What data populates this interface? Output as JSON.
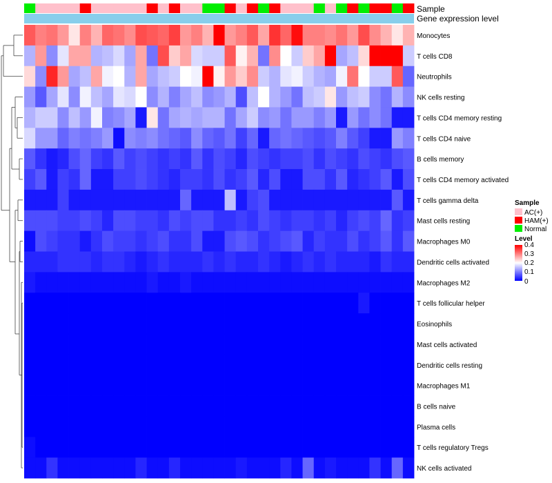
{
  "chart_data": {
    "type": "heatmap",
    "annotation_titles": {
      "sample": "Sample",
      "level": "Gene expression level"
    },
    "rows": [
      "Monocytes",
      "T cells CD8",
      "Neutrophils",
      "NK cells resting",
      "T cells CD4 memory resting",
      "T cells CD4 naive",
      "B cells memory",
      "T cells CD4 memory activated",
      "T cells gamma delta",
      "Mast cells resting",
      "Macrophages M0",
      "Dendritic cells activated",
      "Macrophages M2",
      "T cells follicular helper",
      "Eosinophils",
      "Mast cells activated",
      "Dendritic cells resting",
      "Macrophages M1",
      "B cells naive",
      "Plasma cells",
      "T cells regulatory  Tregs",
      "NK cells activated"
    ],
    "sample_groups": [
      "N",
      "A",
      "A",
      "A",
      "A",
      "H",
      "A",
      "A",
      "A",
      "A",
      "A",
      "H",
      "A",
      "H",
      "A",
      "A",
      "N",
      "N",
      "H",
      "A",
      "H",
      "N",
      "H",
      "A",
      "A",
      "A",
      "N",
      "A",
      "N",
      "H",
      "N",
      "H",
      "H",
      "N",
      "H"
    ],
    "legend": {
      "sample_title": "Sample",
      "sample_entries": [
        {
          "key": "A",
          "label": "AC(+)",
          "color": "#ffc0cb"
        },
        {
          "key": "H",
          "label": "HAM(+)",
          "color": "#ff0000"
        },
        {
          "key": "N",
          "label": "Normal",
          "color": "#00ee00"
        }
      ],
      "level_title": "Level",
      "level_ticks": [
        "0.4",
        "0.3",
        "0.2",
        "0.1",
        "0"
      ],
      "level_range": [
        0,
        0.4
      ]
    },
    "colors": {
      "low": "#0000ff",
      "mid": "#ffffff",
      "high": "#ff0000",
      "expression_bar": "#87ceeb"
    },
    "values": [
      [
        0.33,
        0.3,
        0.31,
        0.28,
        0.22,
        0.3,
        0.26,
        0.32,
        0.31,
        0.29,
        0.34,
        0.33,
        0.32,
        0.35,
        0.28,
        0.3,
        0.26,
        0.4,
        0.28,
        0.3,
        0.33,
        0.27,
        0.36,
        0.32,
        0.39,
        0.3,
        0.3,
        0.29,
        0.31,
        0.28,
        0.34,
        0.29,
        0.26,
        0.22,
        0.26
      ],
      [
        0.14,
        0.28,
        0.11,
        0.18,
        0.27,
        0.27,
        0.14,
        0.15,
        0.17,
        0.13,
        0.27,
        0.09,
        0.34,
        0.24,
        0.27,
        0.17,
        0.16,
        0.16,
        0.33,
        0.21,
        0.26,
        0.09,
        0.29,
        0.2,
        0.16,
        0.24,
        0.27,
        0.4,
        0.13,
        0.15,
        0.23,
        0.4,
        0.4,
        0.4,
        0.16
      ],
      [
        0.23,
        0.11,
        0.37,
        0.28,
        0.13,
        0.15,
        0.27,
        0.19,
        0.2,
        0.14,
        0.27,
        0.13,
        0.15,
        0.16,
        0.2,
        0.19,
        0.4,
        0.21,
        0.28,
        0.24,
        0.29,
        0.16,
        0.14,
        0.18,
        0.19,
        0.16,
        0.14,
        0.13,
        0.19,
        0.31,
        0.2,
        0.16,
        0.16,
        0.33,
        0.08
      ],
      [
        0.12,
        0.07,
        0.13,
        0.18,
        0.11,
        0.19,
        0.15,
        0.13,
        0.18,
        0.17,
        0.2,
        0.11,
        0.14,
        0.1,
        0.13,
        0.15,
        0.11,
        0.12,
        0.14,
        0.06,
        0.15,
        0.2,
        0.14,
        0.12,
        0.09,
        0.15,
        0.16,
        0.22,
        0.12,
        0.15,
        0.16,
        0.11,
        0.09,
        0.14,
        0.11
      ],
      [
        0.14,
        0.16,
        0.16,
        0.11,
        0.15,
        0.12,
        0.19,
        0.1,
        0.11,
        0.13,
        0.02,
        0.22,
        0.09,
        0.13,
        0.14,
        0.13,
        0.14,
        0.14,
        0.09,
        0.13,
        0.16,
        0.11,
        0.12,
        0.09,
        0.12,
        0.12,
        0.1,
        0.12,
        0.02,
        0.12,
        0.09,
        0.11,
        0.09,
        0.02,
        0.02
      ],
      [
        0.17,
        0.12,
        0.12,
        0.08,
        0.1,
        0.09,
        0.1,
        0.12,
        0.01,
        0.11,
        0.1,
        0.11,
        0.09,
        0.08,
        0.07,
        0.11,
        0.08,
        0.07,
        0.09,
        0.05,
        0.08,
        0.02,
        0.08,
        0.09,
        0.08,
        0.07,
        0.06,
        0.07,
        0.1,
        0.07,
        0.05,
        0.02,
        0.02,
        0.12,
        0.1
      ],
      [
        0.07,
        0.04,
        0.02,
        0.03,
        0.06,
        0.08,
        0.05,
        0.04,
        0.07,
        0.05,
        0.06,
        0.05,
        0.04,
        0.05,
        0.04,
        0.07,
        0.04,
        0.06,
        0.05,
        0.03,
        0.06,
        0.05,
        0.04,
        0.05,
        0.05,
        0.06,
        0.04,
        0.06,
        0.05,
        0.04,
        0.06,
        0.05,
        0.04,
        0.06,
        0.07
      ],
      [
        0.05,
        0.07,
        0.02,
        0.05,
        0.04,
        0.08,
        0.02,
        0.02,
        0.05,
        0.05,
        0.06,
        0.05,
        0.04,
        0.03,
        0.05,
        0.05,
        0.04,
        0.06,
        0.04,
        0.05,
        0.07,
        0.03,
        0.06,
        0.02,
        0.02,
        0.06,
        0.06,
        0.04,
        0.07,
        0.03,
        0.04,
        0.05,
        0.07,
        0.02,
        0.06
      ],
      [
        0.02,
        0.02,
        0.02,
        0.05,
        0.02,
        0.02,
        0.02,
        0.02,
        0.02,
        0.02,
        0.02,
        0.02,
        0.02,
        0.02,
        0.08,
        0.02,
        0.02,
        0.02,
        0.15,
        0.02,
        0.05,
        0.06,
        0.02,
        0.02,
        0.02,
        0.02,
        0.02,
        0.02,
        0.02,
        0.02,
        0.02,
        0.02,
        0.02,
        0.07,
        0.02
      ],
      [
        0.06,
        0.06,
        0.06,
        0.05,
        0.05,
        0.06,
        0.05,
        0.03,
        0.06,
        0.06,
        0.05,
        0.05,
        0.04,
        0.06,
        0.05,
        0.06,
        0.06,
        0.04,
        0.04,
        0.05,
        0.04,
        0.06,
        0.05,
        0.04,
        0.05,
        0.05,
        0.04,
        0.05,
        0.03,
        0.05,
        0.06,
        0.05,
        0.08,
        0.04,
        0.05
      ],
      [
        0.01,
        0.06,
        0.05,
        0.04,
        0.04,
        0.02,
        0.04,
        0.06,
        0.05,
        0.05,
        0.04,
        0.05,
        0.06,
        0.04,
        0.04,
        0.06,
        0.02,
        0.02,
        0.06,
        0.07,
        0.06,
        0.04,
        0.05,
        0.06,
        0.07,
        0.03,
        0.05,
        0.04,
        0.04,
        0.06,
        0.04,
        0.05,
        0.07,
        0.04,
        0.07
      ],
      [
        0.03,
        0.03,
        0.03,
        0.04,
        0.04,
        0.04,
        0.03,
        0.04,
        0.04,
        0.03,
        0.02,
        0.03,
        0.04,
        0.03,
        0.03,
        0.03,
        0.04,
        0.03,
        0.04,
        0.03,
        0.03,
        0.04,
        0.03,
        0.02,
        0.03,
        0.04,
        0.03,
        0.04,
        0.03,
        0.03,
        0.03,
        0.02,
        0.04,
        0.03,
        0.03
      ],
      [
        0.02,
        0.01,
        0.01,
        0.01,
        0.01,
        0.01,
        0.01,
        0.01,
        0.01,
        0.01,
        0.01,
        0.02,
        0.01,
        0.01,
        0.02,
        0.01,
        0.01,
        0.01,
        0.01,
        0.01,
        0.01,
        0.01,
        0.01,
        0.01,
        0.01,
        0.01,
        0.01,
        0.01,
        0.01,
        0.01,
        0.01,
        0.01,
        0.01,
        0.01,
        0.01
      ],
      [
        0,
        0,
        0,
        0,
        0,
        0,
        0,
        0,
        0,
        0,
        0,
        0,
        0,
        0,
        0,
        0,
        0,
        0,
        0,
        0,
        0,
        0,
        0,
        0,
        0,
        0,
        0,
        0,
        0,
        0,
        0.02,
        0,
        0,
        0,
        0
      ],
      [
        0,
        0,
        0,
        0,
        0,
        0,
        0,
        0,
        0,
        0,
        0,
        0,
        0,
        0,
        0,
        0,
        0,
        0,
        0,
        0,
        0,
        0,
        0,
        0,
        0,
        0,
        0,
        0,
        0,
        0,
        0,
        0,
        0,
        0,
        0
      ],
      [
        0,
        0,
        0,
        0,
        0,
        0,
        0,
        0,
        0,
        0,
        0,
        0,
        0,
        0,
        0,
        0,
        0,
        0,
        0,
        0,
        0,
        0,
        0,
        0,
        0,
        0,
        0,
        0,
        0,
        0,
        0,
        0,
        0,
        0,
        0
      ],
      [
        0,
        0,
        0,
        0,
        0,
        0,
        0,
        0,
        0,
        0,
        0,
        0,
        0,
        0,
        0,
        0,
        0,
        0,
        0,
        0,
        0,
        0,
        0,
        0,
        0,
        0,
        0,
        0,
        0,
        0,
        0,
        0,
        0,
        0,
        0
      ],
      [
        0,
        0,
        0,
        0,
        0,
        0,
        0,
        0,
        0,
        0,
        0,
        0,
        0,
        0,
        0,
        0,
        0,
        0,
        0,
        0,
        0,
        0,
        0,
        0,
        0,
        0,
        0,
        0,
        0,
        0,
        0,
        0,
        0,
        0,
        0
      ],
      [
        0,
        0,
        0,
        0,
        0,
        0,
        0,
        0,
        0,
        0,
        0,
        0,
        0,
        0,
        0,
        0,
        0,
        0,
        0,
        0,
        0,
        0,
        0,
        0,
        0,
        0,
        0,
        0,
        0,
        0,
        0,
        0,
        0,
        0,
        0
      ],
      [
        0,
        0,
        0,
        0,
        0,
        0,
        0,
        0,
        0,
        0,
        0,
        0,
        0,
        0,
        0,
        0,
        0,
        0,
        0,
        0,
        0,
        0,
        0,
        0,
        0,
        0,
        0,
        0,
        0,
        0,
        0,
        0,
        0,
        0,
        0
      ],
      [
        0.01,
        0,
        0,
        0,
        0,
        0,
        0,
        0,
        0,
        0,
        0,
        0,
        0,
        0,
        0,
        0,
        0,
        0,
        0,
        0,
        0,
        0,
        0,
        0,
        0,
        0,
        0,
        0,
        0,
        0,
        0,
        0,
        0,
        0,
        0
      ],
      [
        0.01,
        0.01,
        0.04,
        0.01,
        0.01,
        0.01,
        0.01,
        0.01,
        0.01,
        0.01,
        0.03,
        0.01,
        0.01,
        0.03,
        0.01,
        0.01,
        0.01,
        0.01,
        0.01,
        0.02,
        0.01,
        0.01,
        0.01,
        0.03,
        0.01,
        0.08,
        0.01,
        0.02,
        0.01,
        0.01,
        0.01,
        0.04,
        0.01,
        0.08,
        0.01
      ]
    ]
  }
}
